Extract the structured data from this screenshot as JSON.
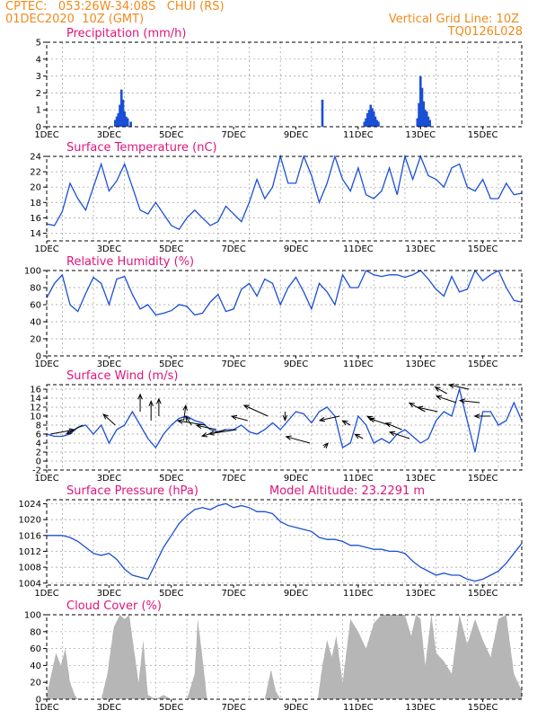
{
  "header": {
    "line1_left": "CPTEC:   053:26W-34:08S   CHUI (RS)",
    "line2_left": "01DEC2020  10Z (GMT)",
    "line2_right": "Vertical Grid Line: 10Z",
    "line3_right": "TQ0126L028"
  },
  "colors": {
    "header": "#f08a1c",
    "title": "#e0157a",
    "line": "#1a4fd6",
    "bar": "#1a4fd6",
    "cloud": "#a8a8a8",
    "arrow": "#000000"
  },
  "x_axis_labels": [
    "1DEC",
    "3DEC",
    "5DEC",
    "7DEC",
    "9DEC",
    "11DEC",
    "13DEC",
    "15DEC"
  ],
  "chart_data": [
    {
      "id": "precip",
      "type": "bar",
      "title": "Precipitation (mm/h)",
      "xlim": [
        0,
        15.25
      ],
      "ylim": [
        0,
        5
      ],
      "yticks": [
        0,
        1,
        2,
        3,
        4,
        5
      ],
      "x": [
        2.2,
        2.25,
        2.3,
        2.35,
        2.4,
        2.45,
        2.5,
        2.55,
        2.6,
        2.7,
        8.85,
        10.2,
        10.25,
        10.3,
        10.35,
        10.4,
        10.45,
        10.5,
        10.55,
        10.6,
        10.65,
        11.9,
        11.95,
        12.0,
        12.05,
        12.1,
        12.15,
        12.2,
        12.25,
        12.3
      ],
      "values": [
        0.4,
        0.6,
        0.8,
        1.3,
        2.2,
        1.6,
        0.9,
        0.6,
        0.5,
        0.3,
        1.6,
        0.3,
        0.5,
        0.8,
        1.0,
        1.3,
        1.1,
        0.9,
        0.6,
        0.4,
        0.3,
        0.5,
        1.4,
        3.0,
        2.3,
        1.5,
        1.0,
        0.9,
        0.6,
        0.4
      ]
    },
    {
      "id": "temp",
      "type": "line",
      "title": "Surface Temperature (nC)",
      "xlim": [
        0,
        15.25
      ],
      "ylim": [
        13,
        24
      ],
      "yticks": [
        14,
        16,
        18,
        20,
        22,
        24
      ],
      "x": [
        0,
        0.25,
        0.5,
        0.75,
        1.0,
        1.25,
        1.5,
        1.75,
        2.0,
        2.25,
        2.5,
        2.75,
        3.0,
        3.25,
        3.5,
        3.75,
        4.0,
        4.25,
        4.5,
        4.75,
        5.0,
        5.25,
        5.5,
        5.75,
        6.0,
        6.25,
        6.5,
        6.75,
        7.0,
        7.25,
        7.5,
        7.75,
        8.0,
        8.25,
        8.5,
        8.75,
        9.0,
        9.25,
        9.5,
        9.75,
        10.0,
        10.25,
        10.5,
        10.75,
        11.0,
        11.25,
        11.5,
        11.75,
        12.0,
        12.25,
        12.5,
        12.75,
        13.0,
        13.25,
        13.5,
        13.75,
        14.0,
        14.25,
        14.5,
        14.75,
        15.0,
        15.25
      ],
      "values": [
        15.2,
        15.0,
        16.8,
        20.5,
        18.5,
        17.0,
        20.0,
        23.0,
        19.5,
        20.8,
        23.0,
        20.0,
        17.0,
        16.5,
        18.0,
        16.5,
        15.0,
        14.5,
        16.0,
        17.0,
        16.0,
        15.0,
        15.5,
        17.5,
        16.5,
        15.5,
        18.0,
        21.0,
        18.5,
        20.0,
        24.0,
        20.5,
        20.5,
        24.0,
        21.5,
        18.0,
        20.5,
        24.0,
        21.0,
        19.5,
        22.5,
        19.0,
        18.5,
        19.5,
        22.5,
        19.0,
        24.0,
        21.0,
        24.0,
        21.5,
        21.0,
        20.0,
        22.5,
        23.0,
        20.0,
        19.5,
        21.0,
        18.5,
        18.5,
        20.5,
        19.0,
        19.2
      ]
    },
    {
      "id": "rh",
      "type": "line",
      "title": "Relative Humidity (%)",
      "xlim": [
        0,
        15.25
      ],
      "ylim": [
        0,
        100
      ],
      "yticks": [
        0,
        20,
        40,
        60,
        80,
        100
      ],
      "x": [
        0,
        0.25,
        0.5,
        0.75,
        1.0,
        1.25,
        1.5,
        1.75,
        2.0,
        2.25,
        2.5,
        2.75,
        3.0,
        3.25,
        3.5,
        3.75,
        4.0,
        4.25,
        4.5,
        4.75,
        5.0,
        5.25,
        5.5,
        5.75,
        6.0,
        6.25,
        6.5,
        6.75,
        7.0,
        7.25,
        7.5,
        7.75,
        8.0,
        8.25,
        8.5,
        8.75,
        9.0,
        9.25,
        9.5,
        9.75,
        10.0,
        10.25,
        10.5,
        10.75,
        11.0,
        11.25,
        11.5,
        11.75,
        12.0,
        12.25,
        12.5,
        12.75,
        13.0,
        13.25,
        13.5,
        13.75,
        14.0,
        14.25,
        14.5,
        14.75,
        15.0,
        15.25
      ],
      "values": [
        68,
        85,
        95,
        60,
        52,
        73,
        92,
        85,
        60,
        90,
        93,
        72,
        55,
        60,
        48,
        50,
        53,
        60,
        58,
        48,
        50,
        63,
        72,
        52,
        55,
        78,
        85,
        70,
        90,
        85,
        60,
        80,
        92,
        75,
        55,
        85,
        75,
        60,
        95,
        80,
        80,
        100,
        95,
        93,
        95,
        95,
        92,
        95,
        100,
        90,
        78,
        70,
        93,
        75,
        78,
        100,
        88,
        95,
        100,
        80,
        65,
        63
      ]
    },
    {
      "id": "wind",
      "type": "line",
      "title": "Surface Wind (m/s)",
      "xlim": [
        0,
        15.25
      ],
      "ylim": [
        -2,
        17
      ],
      "yticks": [
        -2,
        0,
        2,
        4,
        6,
        8,
        10,
        12,
        14,
        16
      ],
      "x": [
        0,
        0.25,
        0.5,
        0.75,
        1.0,
        1.25,
        1.5,
        1.75,
        2.0,
        2.25,
        2.5,
        2.75,
        3.0,
        3.25,
        3.5,
        3.75,
        4.0,
        4.25,
        4.5,
        4.75,
        5.0,
        5.25,
        5.5,
        5.75,
        6.0,
        6.25,
        6.5,
        6.75,
        7.0,
        7.25,
        7.5,
        7.75,
        8.0,
        8.25,
        8.5,
        8.75,
        9.0,
        9.25,
        9.5,
        9.75,
        10.0,
        10.25,
        10.5,
        10.75,
        11.0,
        11.25,
        11.5,
        11.75,
        12.0,
        12.25,
        12.5,
        12.75,
        13.0,
        13.25,
        13.5,
        13.75,
        14.0,
        14.25,
        14.5,
        14.75,
        15.0,
        15.25
      ],
      "values": [
        6.0,
        5.5,
        5.5,
        6.0,
        7.5,
        8.0,
        6.0,
        8.0,
        4.0,
        7.0,
        8.0,
        11.0,
        8.0,
        5.0,
        3.0,
        6.0,
        8.0,
        9.5,
        10.0,
        9.0,
        8.5,
        7.0,
        6.5,
        7.0,
        7.0,
        8.0,
        6.5,
        6.0,
        7.0,
        8.5,
        7.0,
        9.0,
        11.0,
        10.5,
        8.5,
        11.0,
        12.0,
        10.0,
        3.0,
        4.0,
        10.0,
        8.0,
        4.0,
        5.0,
        4.0,
        6.0,
        7.0,
        5.5,
        4.0,
        5.0,
        9.0,
        11.0,
        10.0,
        16.0,
        9.0,
        2.0,
        11.0,
        11.0,
        8.0,
        9.0,
        13.0,
        9.0
      ]
    },
    {
      "id": "pres",
      "type": "line",
      "title": "Surface Pressure (hPa)",
      "annotation": "Model Altitude: 23.2291 m",
      "xlim": [
        0,
        15.25
      ],
      "ylim": [
        1003.5,
        1025
      ],
      "yticks": [
        1004,
        1008,
        1012,
        1016,
        1020,
        1024
      ],
      "x": [
        0,
        0.25,
        0.5,
        0.75,
        1.0,
        1.25,
        1.5,
        1.75,
        2.0,
        2.25,
        2.5,
        2.75,
        3.0,
        3.25,
        3.5,
        3.75,
        4.0,
        4.25,
        4.5,
        4.75,
        5.0,
        5.25,
        5.5,
        5.75,
        6.0,
        6.25,
        6.5,
        6.75,
        7.0,
        7.25,
        7.5,
        7.75,
        8.0,
        8.25,
        8.5,
        8.75,
        9.0,
        9.25,
        9.5,
        9.75,
        10.0,
        10.25,
        10.5,
        10.75,
        11.0,
        11.25,
        11.5,
        11.75,
        12.0,
        12.25,
        12.5,
        12.75,
        13.0,
        13.25,
        13.5,
        13.75,
        14.0,
        14.25,
        14.5,
        14.75,
        15.0,
        15.25
      ],
      "values": [
        1016,
        1016,
        1016,
        1015.5,
        1014.5,
        1013,
        1011.5,
        1011,
        1011.5,
        1010,
        1007.5,
        1006,
        1005.5,
        1005,
        1009,
        1013,
        1016,
        1019,
        1021,
        1022.5,
        1023,
        1022.5,
        1023.5,
        1024,
        1023,
        1023.5,
        1023,
        1022,
        1022,
        1021.5,
        1019.5,
        1018.5,
        1018,
        1017.5,
        1017,
        1015.5,
        1015,
        1015,
        1014.5,
        1013.5,
        1013.5,
        1013,
        1012.5,
        1012.5,
        1012,
        1012,
        1011.5,
        1009.5,
        1008,
        1007,
        1006,
        1006.5,
        1006,
        1006,
        1005,
        1004.5,
        1005,
        1006,
        1007,
        1009,
        1011.5,
        1014
      ]
    },
    {
      "id": "cloud",
      "type": "area",
      "title": "Cloud Cover (%)",
      "xlim": [
        0,
        15.25
      ],
      "ylim": [
        0,
        100
      ],
      "yticks": [
        0,
        20,
        40,
        60,
        80,
        100
      ],
      "x": [
        0,
        0.15,
        0.3,
        0.45,
        0.6,
        0.75,
        0.9,
        1.0,
        1.25,
        1.5,
        1.75,
        1.95,
        2.15,
        2.35,
        2.5,
        2.65,
        2.8,
        2.95,
        3.1,
        3.25,
        3.5,
        3.75,
        4.0,
        4.25,
        4.5,
        4.75,
        4.85,
        5.0,
        5.15,
        5.3,
        5.5,
        5.75,
        6.0,
        6.25,
        6.5,
        6.75,
        7.0,
        7.2,
        7.35,
        7.5,
        7.75,
        8.0,
        8.25,
        8.5,
        8.7,
        8.85,
        9.0,
        9.15,
        9.3,
        9.5,
        9.75,
        10.0,
        10.25,
        10.5,
        10.75,
        11.0,
        11.25,
        11.5,
        11.7,
        11.85,
        12.0,
        12.15,
        12.35,
        12.5,
        12.75,
        13.0,
        13.25,
        13.5,
        13.75,
        14.0,
        14.25,
        14.5,
        14.75,
        15.0,
        15.25
      ],
      "values": [
        5,
        30,
        55,
        40,
        60,
        20,
        5,
        0,
        0,
        0,
        0,
        30,
        85,
        100,
        95,
        100,
        60,
        20,
        70,
        5,
        0,
        5,
        0,
        0,
        0,
        30,
        95,
        50,
        0,
        0,
        0,
        0,
        0,
        0,
        0,
        0,
        0,
        35,
        10,
        0,
        0,
        0,
        0,
        0,
        0,
        40,
        70,
        50,
        75,
        20,
        95,
        80,
        60,
        90,
        100,
        100,
        100,
        100,
        75,
        100,
        95,
        40,
        100,
        55,
        45,
        30,
        100,
        65,
        95,
        70,
        50,
        95,
        100,
        30,
        10
      ]
    }
  ],
  "wind_vectors": {
    "unit": "m/s",
    "day": [
      0.12,
      1.15,
      2.2,
      3.0,
      3.35,
      3.6,
      4.4,
      4.65,
      5.1,
      5.45,
      5.75,
      6.1,
      6.45,
      7.1,
      7.65,
      8.45,
      8.9,
      9.4,
      9.75,
      10.15,
      10.55,
      11.0,
      11.4,
      11.65,
      12.15,
      12.55,
      12.85,
      13.15,
      13.55,
      13.9,
      14.25
    ],
    "speed": [
      6,
      8,
      8,
      11,
      9,
      10,
      9,
      8,
      8,
      7,
      7,
      7,
      9,
      10,
      11,
      4,
      3,
      10,
      8,
      5,
      9,
      8,
      7,
      5,
      11,
      11,
      15,
      13,
      16,
      13,
      10
    ],
    "u": [
      6,
      -4,
      -3,
      0,
      0,
      0,
      0.5,
      -1.5,
      -7,
      -5,
      -6,
      -7,
      -4,
      -6,
      0,
      -6,
      1,
      -5,
      -2,
      -2,
      -2,
      -5,
      -4,
      -5,
      -4,
      -5,
      -3,
      -5,
      -5,
      -5,
      -4
    ],
    "v": [
      2,
      -4,
      5,
      8,
      9,
      8,
      7,
      4,
      2,
      2,
      -3,
      -2,
      2,
      5,
      -4,
      3,
      2,
      -2,
      2,
      2,
      2,
      3,
      3,
      3,
      4,
      2,
      3,
      3,
      2,
      1,
      0
    ]
  }
}
